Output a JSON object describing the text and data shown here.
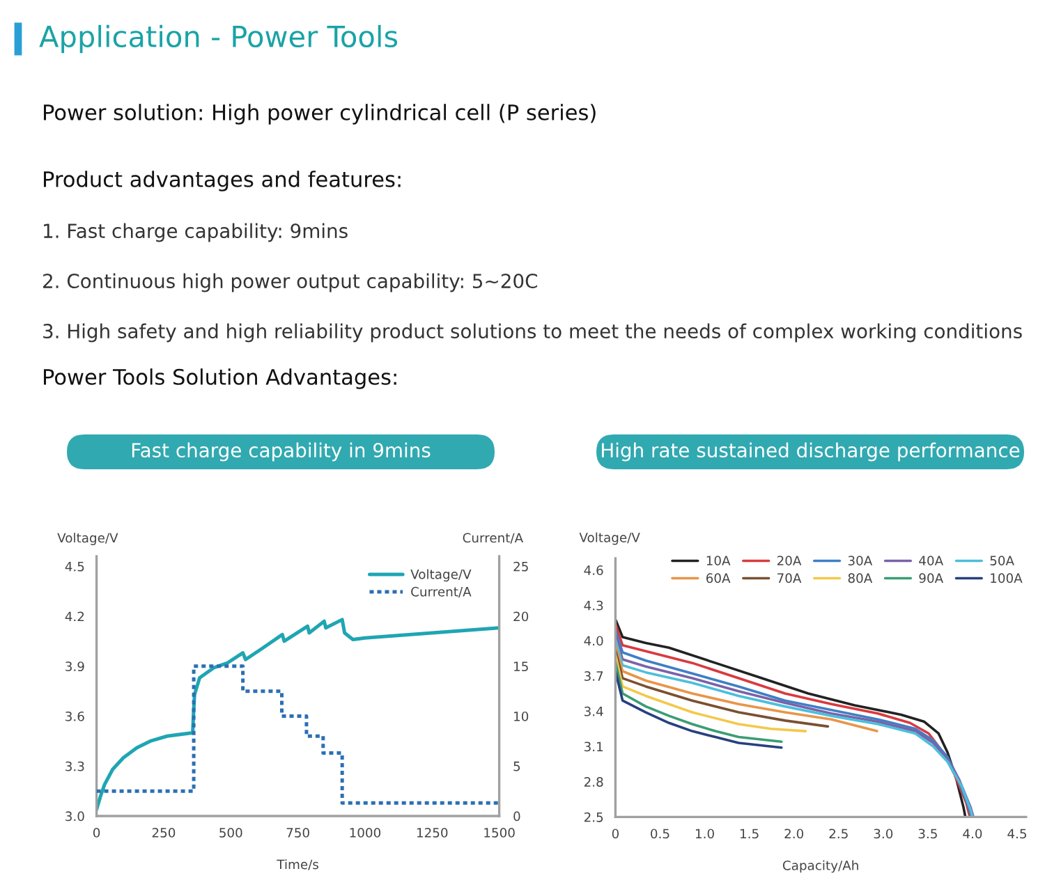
{
  "chart_data": [
    {
      "type": "other",
      "title": "Application - Power Tools",
      "subtitle": "Power solution: High power cylindrical cell (P series)",
      "annotations": [
        "Product advantages and features:",
        "1. Fast charge capability: 9mins",
        "2. Continuous high power output capability: 5~20C",
        "3. High safety and high reliability product solutions to meet the needs of complex working conditions",
        "Power Tools Solution Advantages:"
      ]
    },
    {
      "type": "line",
      "title": "Fast charge capability in 9mins",
      "xlabel": "Time/s",
      "ylabel": "Voltage/V",
      "y2label": "Current/A",
      "xlim": [
        0,
        1500
      ],
      "xticks": [
        0,
        250,
        500,
        750,
        1000,
        1250,
        1500
      ],
      "ylim": [
        3.0,
        4.56
      ],
      "yticks": [
        {
          "value": 3,
          "label": "3.0"
        },
        3.3,
        3.6,
        3.9,
        4.2,
        4.5
      ],
      "y2lim": [
        0,
        26
      ],
      "y2ticks": [
        0,
        5,
        10,
        15,
        20,
        25
      ],
      "legend": "top right",
      "series": [
        {
          "name": "Voltage/V",
          "type": "line",
          "color": "#1fa5b3",
          "line_style": "solid",
          "x": [
            0,
            15,
            30,
            60,
            100,
            150,
            200,
            263,
            358,
            362,
            365,
            384,
            436,
            488,
            545,
            555,
            620,
            692,
            699,
            786,
            792,
            848,
            854,
            915,
            924,
            955,
            1000,
            1250,
            1500
          ],
          "values": [
            3.04,
            3.12,
            3.19,
            3.28,
            3.35,
            3.41,
            3.45,
            3.48,
            3.5,
            3.64,
            3.73,
            3.83,
            3.89,
            3.92,
            3.98,
            3.94,
            4.01,
            4.09,
            4.05,
            4.14,
            4.1,
            4.17,
            4.13,
            4.18,
            4.1,
            4.06,
            4.07,
            4.1,
            4.13
          ]
        },
        {
          "name": "Current/A",
          "type": "step",
          "axis": "y2",
          "color": "#2c6fb3",
          "line_style": "dotted",
          "x": [
            0,
            362,
            545,
            690,
            782,
            844,
            915,
            1500
          ],
          "values": [
            2.5,
            15,
            12.5,
            10,
            8,
            6.3,
            1.3,
            1.3
          ]
        }
      ]
    },
    {
      "type": "line",
      "title": "High rate sustained discharge performance",
      "xlabel": "Capacity/Ah",
      "ylabel": "Voltage/V",
      "xlim": [
        0,
        4.6
      ],
      "xticks": [
        0,
        0.5,
        {
          "value": 1,
          "label": "1.0"
        },
        1.5,
        {
          "value": 2,
          "label": "2.0"
        },
        2.5,
        {
          "value": 3,
          "label": "3.0"
        },
        3.5,
        {
          "value": 4,
          "label": "4.0"
        },
        4.5
      ],
      "ylim": [
        2.5,
        4.7
      ],
      "yticks": [
        2.5,
        2.8,
        3.1,
        3.4,
        3.7,
        {
          "value": 4,
          "label": "4.0"
        },
        4.3,
        4.6
      ],
      "legend": "top right",
      "series": [
        {
          "name": "10A",
          "color": "#222222",
          "x": [
            0,
            0.08,
            0.34,
            0.6,
            1.12,
            1.64,
            2.16,
            2.68,
            3.2,
            3.46,
            3.62,
            3.72,
            3.82,
            3.9,
            3.92
          ],
          "values": [
            4.18,
            4.03,
            3.98,
            3.94,
            3.81,
            3.68,
            3.55,
            3.45,
            3.37,
            3.31,
            3.21,
            3.05,
            2.82,
            2.58,
            2.5
          ]
        },
        {
          "name": "20A",
          "color": "#d93a3f",
          "x": [
            0,
            0.08,
            0.34,
            0.86,
            1.38,
            1.9,
            2.42,
            2.94,
            3.3,
            3.51,
            3.67,
            3.8,
            3.93,
            3.97
          ],
          "values": [
            4.14,
            3.96,
            3.91,
            3.81,
            3.68,
            3.55,
            3.46,
            3.38,
            3.3,
            3.21,
            3.05,
            2.86,
            2.62,
            2.5
          ]
        },
        {
          "name": "30A",
          "color": "#3f7fc6",
          "x": [
            0,
            0.08,
            0.34,
            0.86,
            1.38,
            1.9,
            2.42,
            2.94,
            3.36,
            3.56,
            3.72,
            3.82,
            3.95,
            3.99
          ],
          "values": [
            4.09,
            3.9,
            3.83,
            3.72,
            3.61,
            3.49,
            3.41,
            3.33,
            3.25,
            3.15,
            3.01,
            2.86,
            2.6,
            2.5
          ]
        },
        {
          "name": "40A",
          "color": "#7b62a8",
          "x": [
            0,
            0.08,
            0.34,
            0.86,
            1.38,
            1.9,
            2.42,
            2.94,
            3.36,
            3.56,
            3.72,
            3.85,
            3.98,
            4.01
          ],
          "values": [
            4.05,
            3.84,
            3.78,
            3.68,
            3.57,
            3.47,
            3.38,
            3.31,
            3.23,
            3.13,
            2.99,
            2.82,
            2.58,
            2.5
          ]
        },
        {
          "name": "50A",
          "color": "#4bbfdc",
          "x": [
            0,
            0.08,
            0.34,
            0.86,
            1.38,
            1.9,
            2.42,
            2.94,
            3.36,
            3.56,
            3.72,
            3.88,
            3.98,
            4.0
          ],
          "values": [
            4.01,
            3.79,
            3.73,
            3.64,
            3.53,
            3.44,
            3.36,
            3.29,
            3.21,
            3.1,
            2.97,
            2.76,
            2.56,
            2.5
          ]
        },
        {
          "name": "60A",
          "color": "#e8954a",
          "x": [
            0,
            0.08,
            0.34,
            0.86,
            1.38,
            1.9,
            2.42,
            2.93
          ],
          "values": [
            3.96,
            3.74,
            3.66,
            3.55,
            3.46,
            3.39,
            3.33,
            3.23
          ]
        },
        {
          "name": "70A",
          "color": "#7a5030",
          "x": [
            0,
            0.08,
            0.34,
            0.86,
            1.38,
            1.9,
            2.38
          ],
          "values": [
            3.92,
            3.68,
            3.61,
            3.49,
            3.39,
            3.32,
            3.27
          ]
        },
        {
          "name": "80A",
          "color": "#f2c94c",
          "x": [
            0,
            0.08,
            0.34,
            0.86,
            1.38,
            1.74,
            2.13
          ],
          "values": [
            3.88,
            3.61,
            3.53,
            3.39,
            3.29,
            3.25,
            3.23
          ]
        },
        {
          "name": "90A",
          "color": "#3a9d74",
          "x": [
            0,
            0.08,
            0.34,
            0.6,
            0.86,
            1.12,
            1.38,
            1.86
          ],
          "values": [
            3.82,
            3.55,
            3.44,
            3.36,
            3.29,
            3.23,
            3.18,
            3.14
          ]
        },
        {
          "name": "100A",
          "color": "#27407f",
          "x": [
            0,
            0.08,
            0.34,
            0.6,
            0.86,
            1.12,
            1.38,
            1.86
          ],
          "values": [
            3.74,
            3.49,
            3.39,
            3.3,
            3.23,
            3.18,
            3.13,
            3.09
          ]
        }
      ]
    }
  ]
}
